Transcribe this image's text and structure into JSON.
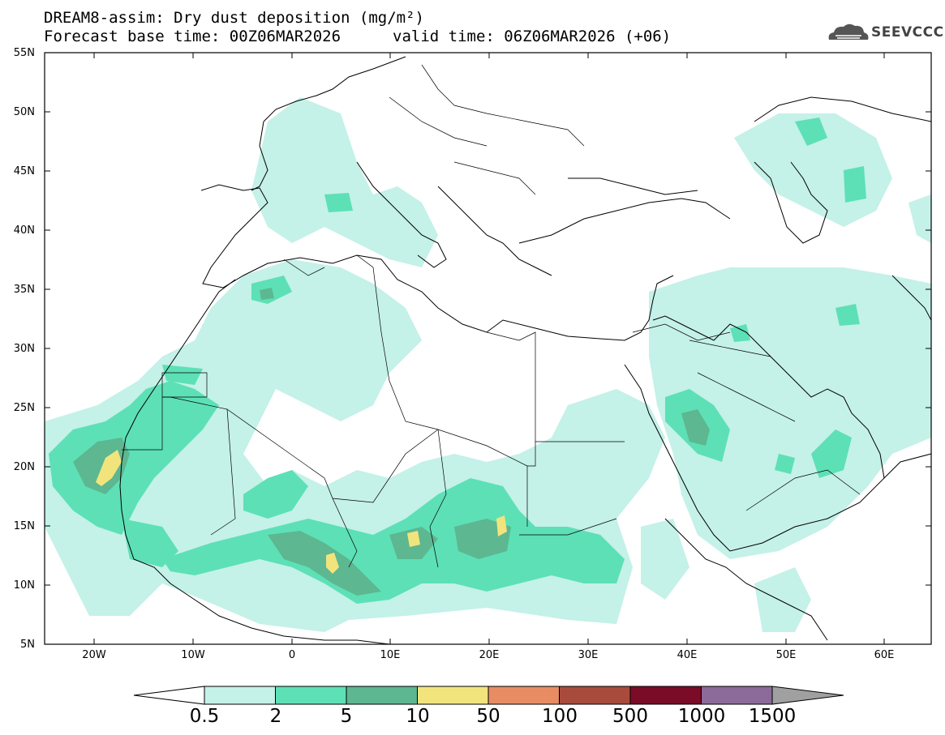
{
  "header": {
    "title_line1": "DREAM8-assim: Dry dust deposition (mg/m²)",
    "title_line2a": "Forecast base time: 00Z06MAR2026",
    "title_line2b": "valid time: 06Z06MAR2026 (+06)",
    "logo_text": "SEEVCCC"
  },
  "axes": {
    "lat_labels": [
      "55N",
      "50N",
      "45N",
      "40N",
      "35N",
      "30N",
      "25N",
      "20N",
      "15N",
      "10N",
      "5N"
    ],
    "lon_labels": [
      "20W",
      "10W",
      "0",
      "10E",
      "20E",
      "30E",
      "40E",
      "50E",
      "60E"
    ]
  },
  "colorbar": {
    "labels": [
      "0.5",
      "2",
      "5",
      "10",
      "50",
      "100",
      "500",
      "1000",
      "1500"
    ],
    "colors": [
      "#c4f1e8",
      "#5de0b6",
      "#5db791",
      "#f2e47c",
      "#e88c63",
      "#a84b3d",
      "#7a0c28",
      "#8c6a9a",
      "#a0a0a0"
    ]
  },
  "colors": {
    "light": "#c4f1e8",
    "mid": "#5de0b6",
    "dark": "#5db791",
    "yellow": "#f2e47c"
  }
}
